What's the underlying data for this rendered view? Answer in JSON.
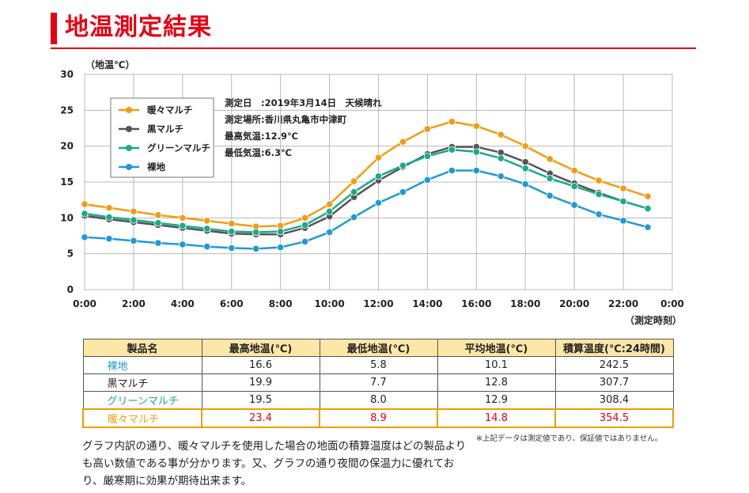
{
  "page_title": "地温測定結果",
  "chart_data": {
    "type": "line",
    "ylabel": "（地温℃）",
    "xlabel": "（測定時刻）",
    "ylim": [
      0,
      30
    ],
    "yticks": [
      "0",
      "5",
      "10",
      "15",
      "20",
      "25",
      "30"
    ],
    "xticks": [
      "0:00",
      "2:00",
      "4:00",
      "6:00",
      "8:00",
      "10:00",
      "12:00",
      "14:00",
      "16:00",
      "18:00",
      "20:00",
      "22:00",
      "0:00"
    ],
    "x": [
      0,
      1,
      2,
      3,
      4,
      5,
      6,
      7,
      8,
      9,
      10,
      11,
      12,
      13,
      14,
      15,
      16,
      17,
      18,
      19,
      20,
      21,
      22,
      23
    ],
    "grid": true,
    "legend_position": "top-left",
    "series": [
      {
        "name": "暖々マルチ",
        "color": "#f39c12",
        "values": [
          11.9,
          11.4,
          10.9,
          10.4,
          10.0,
          9.6,
          9.2,
          8.8,
          8.9,
          10.0,
          11.9,
          15.1,
          18.4,
          20.6,
          22.4,
          23.4,
          22.8,
          21.6,
          20.0,
          18.2,
          16.6,
          15.2,
          14.1,
          13.0
        ]
      },
      {
        "name": "黒マルチ",
        "color": "#555555",
        "values": [
          10.3,
          9.8,
          9.4,
          9.0,
          8.6,
          8.2,
          7.8,
          7.7,
          7.7,
          8.6,
          10.2,
          12.9,
          15.2,
          17.1,
          18.9,
          19.9,
          19.9,
          19.1,
          17.8,
          16.2,
          14.8,
          13.5,
          12.3,
          11.3
        ]
      },
      {
        "name": "グリーンマルチ",
        "color": "#1aaa8c",
        "values": [
          10.6,
          10.1,
          9.7,
          9.3,
          8.9,
          8.5,
          8.1,
          8.0,
          8.1,
          9.0,
          10.9,
          13.6,
          15.8,
          17.3,
          18.6,
          19.5,
          19.2,
          18.3,
          16.9,
          15.5,
          14.4,
          13.3,
          12.3,
          11.3
        ]
      },
      {
        "name": "裸地",
        "color": "#1f9ad6",
        "values": [
          7.3,
          7.1,
          6.8,
          6.5,
          6.3,
          6.0,
          5.8,
          5.7,
          5.9,
          6.7,
          8.0,
          10.1,
          12.1,
          13.6,
          15.3,
          16.6,
          16.6,
          15.8,
          14.7,
          13.1,
          11.8,
          10.5,
          9.6,
          8.7
        ]
      }
    ],
    "info": [
      "測定日　:2019年3月14日　天候晴れ",
      "測定場所:香川県丸亀市中津町",
      "最高気温:12.9℃",
      "最低気温:6.3℃"
    ]
  },
  "table": {
    "headers": [
      "製品名",
      "最高地温(℃)",
      "最低地温(℃)",
      "平均地温(℃)",
      "積算温度(℃:24時間)"
    ],
    "rows": [
      {
        "name": "裸地",
        "name_color": "#1f9ad6",
        "cells": [
          "16.6",
          "5.8",
          "10.1",
          "242.5"
        ]
      },
      {
        "name": "黒マルチ",
        "name_color": "#222222",
        "cells": [
          "19.9",
          "7.7",
          "12.8",
          "307.7"
        ]
      },
      {
        "name": "グリーンマルチ",
        "name_color": "#1aaa8c",
        "cells": [
          "19.5",
          "8.0",
          "12.9",
          "308.4"
        ]
      },
      {
        "name": "暖々マルチ",
        "name_color": "#f39c12",
        "cells": [
          "23.4",
          "8.9",
          "14.8",
          "354.5"
        ]
      }
    ]
  },
  "footnote": "※上記データは測定値であり、保証値ではありません。",
  "description": "グラフ内訳の通り、暖々マルチを使用した場合の地面の積算温度はどの製品よりも高い数値である事が分かります。又、グラフの通り夜間の保温力に優れており、厳寒期に効果が期待出来ます。"
}
